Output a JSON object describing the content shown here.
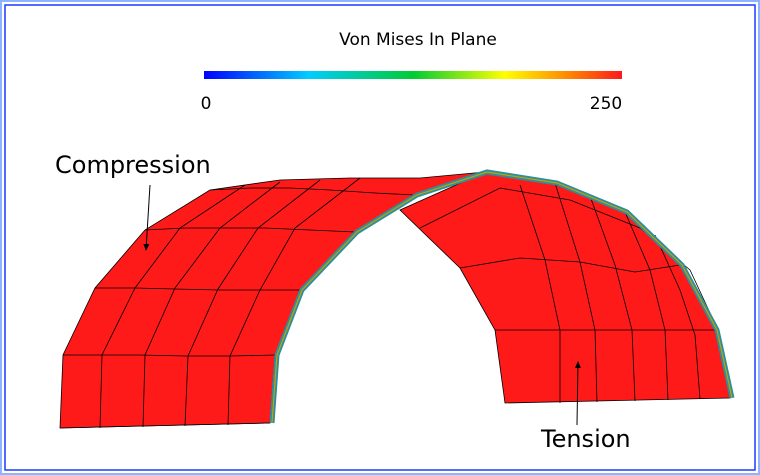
{
  "viewport": {
    "colorbar": {
      "title": "Von Mises In Plane",
      "min": 0,
      "max": 250
    },
    "annotations": [
      "Compression",
      "Tension"
    ]
  }
}
